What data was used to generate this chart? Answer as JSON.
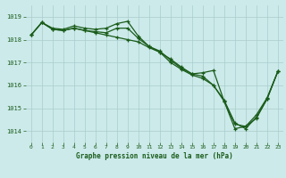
{
  "title": "Graphe pression niveau de la mer (hPa)",
  "bg_color": "#cceaea",
  "grid_color": "#aacccc",
  "line_color": "#1a5c1a",
  "xlim": [
    -0.5,
    23.5
  ],
  "ylim": [
    1013.5,
    1019.5
  ],
  "yticks": [
    1014,
    1015,
    1016,
    1017,
    1018,
    1019
  ],
  "xticks": [
    0,
    1,
    2,
    3,
    4,
    5,
    6,
    7,
    8,
    9,
    10,
    11,
    12,
    13,
    14,
    15,
    16,
    17,
    18,
    19,
    20,
    21,
    22,
    23
  ],
  "line1_x": [
    0,
    1,
    2,
    3,
    4,
    5,
    6,
    7,
    8,
    9,
    10,
    11,
    12,
    13,
    14,
    15,
    16,
    17,
    18,
    19,
    20,
    21,
    22,
    23
  ],
  "line1_y": [
    1018.2,
    1018.75,
    1018.5,
    1018.45,
    1018.6,
    1018.5,
    1018.45,
    1018.5,
    1018.7,
    1018.8,
    1018.15,
    1017.7,
    1017.5,
    1017.1,
    1016.75,
    1016.5,
    1016.55,
    1016.65,
    1015.3,
    1014.1,
    1014.2,
    1014.7,
    1015.45,
    1016.6
  ],
  "line2_x": [
    0,
    1,
    2,
    3,
    4,
    5,
    6,
    7,
    8,
    9,
    10,
    11,
    12,
    13,
    14,
    15,
    16,
    17,
    18,
    19,
    20,
    21,
    22,
    23
  ],
  "line2_y": [
    1018.2,
    1018.75,
    1018.45,
    1018.4,
    1018.5,
    1018.4,
    1018.35,
    1018.3,
    1018.5,
    1018.5,
    1018.05,
    1017.7,
    1017.45,
    1017.15,
    1016.8,
    1016.5,
    1016.4,
    1016.0,
    1015.35,
    1014.35,
    1014.1,
    1014.6,
    1015.4,
    1016.6
  ],
  "line3_x": [
    0,
    1,
    2,
    3,
    4,
    5,
    6,
    7,
    8,
    9,
    10,
    11,
    12,
    13,
    14,
    15,
    16,
    17,
    18,
    19,
    20,
    21,
    22,
    23
  ],
  "line3_y": [
    1018.2,
    1018.75,
    1018.45,
    1018.4,
    1018.5,
    1018.4,
    1018.3,
    1018.2,
    1018.1,
    1018.0,
    1017.9,
    1017.65,
    1017.45,
    1017.0,
    1016.7,
    1016.45,
    1016.3,
    1016.0,
    1015.3,
    1014.3,
    1014.2,
    1014.55,
    1015.4,
    1016.6
  ]
}
